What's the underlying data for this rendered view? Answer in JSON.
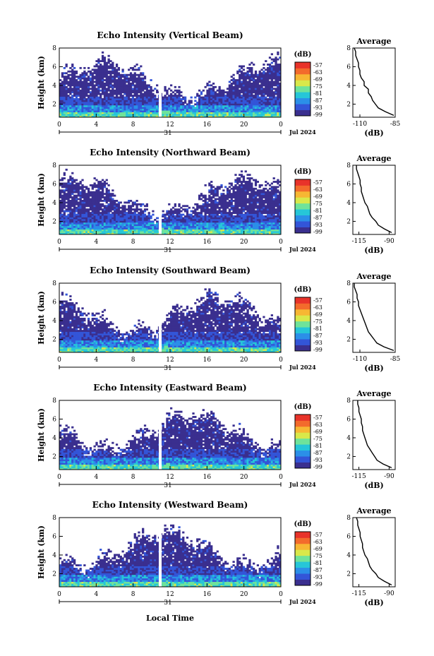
{
  "figure": {
    "xlabel_bottom": "Local Time",
    "cbar_unit": "(dB)",
    "avg_xlabel": "(dB)",
    "avg_title": "Average",
    "date_tick": "31",
    "date_label": "Jul 2024"
  },
  "colormap": [
    "#3a2f8f",
    "#3355d8",
    "#2b8fe8",
    "#26c6d8",
    "#6fe39a",
    "#d9e84a",
    "#f7b733",
    "#f36b2c",
    "#e8332a"
  ],
  "chart_data": [
    {
      "type": "heatmap",
      "title": "Echo Intensity (Vertical Beam)",
      "ylabel": "Height (km)",
      "x_ticks": [
        "0",
        "4",
        "8",
        "12",
        "16",
        "20",
        "0"
      ],
      "y_ticks": [
        "2",
        "4",
        "6",
        "8"
      ],
      "ylim": [
        0.6,
        8
      ],
      "cbar_ticks": [
        "-57",
        "-63",
        "-69",
        "-75",
        "-81",
        "-87",
        "-93",
        "-99"
      ],
      "average": {
        "xlim": [
          -115,
          -85
        ],
        "xticks": [
          "-110",
          "-85"
        ],
        "height": [
          0.8,
          1.2,
          1.6,
          2.0,
          2.4,
          2.8,
          3.2,
          3.6,
          4.0,
          4.4,
          4.8,
          5.2,
          5.6,
          6.0,
          6.4,
          6.8,
          7.2,
          7.6,
          8.0
        ],
        "values": [
          -86,
          -92,
          -97,
          -99,
          -101,
          -102,
          -104,
          -104,
          -107,
          -107,
          -109,
          -110,
          -110,
          -111,
          -111,
          -112,
          -113,
          -113,
          -114
        ]
      }
    },
    {
      "type": "heatmap",
      "title": "Echo Intensity (Northward Beam)",
      "ylabel": "Height (km)",
      "x_ticks": [
        "0",
        "4",
        "8",
        "12",
        "16",
        "20",
        "0"
      ],
      "y_ticks": [
        "2",
        "4",
        "6",
        "8"
      ],
      "ylim": [
        0.6,
        8
      ],
      "cbar_ticks": [
        "-57",
        "-63",
        "-69",
        "-75",
        "-81",
        "-87",
        "-93",
        "-99"
      ],
      "average": {
        "xlim": [
          -120,
          -85
        ],
        "xticks": [
          "-115",
          "-90"
        ],
        "height": [
          0.8,
          1.2,
          1.6,
          2.0,
          2.4,
          2.8,
          3.2,
          3.6,
          4.0,
          4.4,
          4.8,
          5.2,
          5.6,
          6.0,
          6.4,
          6.8,
          7.2,
          7.6,
          8.0
        ],
        "values": [
          -88,
          -94,
          -99,
          -101,
          -104,
          -106,
          -107,
          -108,
          -110,
          -111,
          -112,
          -113,
          -113,
          -114,
          -114,
          -115,
          -116,
          -117,
          -117
        ]
      }
    },
    {
      "type": "heatmap",
      "title": "Echo Intensity (Southward Beam)",
      "ylabel": "Height (km)",
      "x_ticks": [
        "0",
        "4",
        "8",
        "12",
        "16",
        "20",
        "0"
      ],
      "y_ticks": [
        "2",
        "4",
        "6",
        "8"
      ],
      "ylim": [
        0.6,
        8
      ],
      "cbar_ticks": [
        "-57",
        "-63",
        "-69",
        "-75",
        "-81",
        "-87",
        "-93",
        "-99"
      ],
      "average": {
        "xlim": [
          -115,
          -85
        ],
        "xticks": [
          "-110",
          "-85"
        ],
        "height": [
          0.8,
          1.2,
          1.6,
          2.0,
          2.4,
          2.8,
          3.2,
          3.6,
          4.0,
          4.4,
          4.8,
          5.2,
          5.6,
          6.0,
          6.4,
          6.8,
          7.2,
          7.6,
          8.0
        ],
        "values": [
          -86,
          -93,
          -98,
          -100,
          -102,
          -104,
          -105,
          -106,
          -107,
          -108,
          -109,
          -110,
          -111,
          -111,
          -112,
          -112,
          -113,
          -114,
          -114
        ]
      }
    },
    {
      "type": "heatmap",
      "title": "Echo Intensity (Eastward Beam)",
      "ylabel": "Height (km)",
      "x_ticks": [
        "0",
        "4",
        "8",
        "12",
        "16",
        "20",
        "0"
      ],
      "y_ticks": [
        "2",
        "4",
        "6",
        "8"
      ],
      "ylim": [
        0.6,
        8
      ],
      "cbar_ticks": [
        "-57",
        "-63",
        "-69",
        "-75",
        "-81",
        "-87",
        "-93",
        "-99"
      ],
      "average": {
        "xlim": [
          -120,
          -85
        ],
        "xticks": [
          "-115",
          "-90"
        ],
        "height": [
          0.8,
          1.2,
          1.6,
          2.0,
          2.4,
          2.8,
          3.2,
          3.6,
          4.0,
          4.4,
          4.8,
          5.2,
          5.6,
          6.0,
          6.4,
          6.8,
          7.2,
          7.6,
          8.0
        ],
        "values": [
          -88,
          -95,
          -100,
          -102,
          -104,
          -106,
          -108,
          -109,
          -110,
          -111,
          -112,
          -112,
          -113,
          -113,
          -114,
          -115,
          -115,
          -116,
          -116
        ]
      }
    },
    {
      "type": "heatmap",
      "title": "Echo Intensity (Westward Beam)",
      "ylabel": "Height (km)",
      "x_ticks": [
        "0",
        "4",
        "8",
        "12",
        "16",
        "20",
        "0"
      ],
      "y_ticks": [
        "2",
        "4",
        "6",
        "8"
      ],
      "ylim": [
        0.6,
        8
      ],
      "cbar_ticks": [
        "-57",
        "-63",
        "-69",
        "-75",
        "-81",
        "-87",
        "-93",
        "-99"
      ],
      "average": {
        "xlim": [
          -120,
          -85
        ],
        "xticks": [
          "-115",
          "-90"
        ],
        "height": [
          0.8,
          1.2,
          1.6,
          2.0,
          2.4,
          2.8,
          3.2,
          3.6,
          4.0,
          4.4,
          4.8,
          5.2,
          5.6,
          6.0,
          6.4,
          6.8,
          7.2,
          7.6,
          8.0
        ],
        "values": [
          -88,
          -94,
          -99,
          -101,
          -104,
          -106,
          -107,
          -108,
          -110,
          -111,
          -112,
          -112,
          -113,
          -114,
          -114,
          -115,
          -116,
          -116,
          -117
        ]
      }
    }
  ]
}
